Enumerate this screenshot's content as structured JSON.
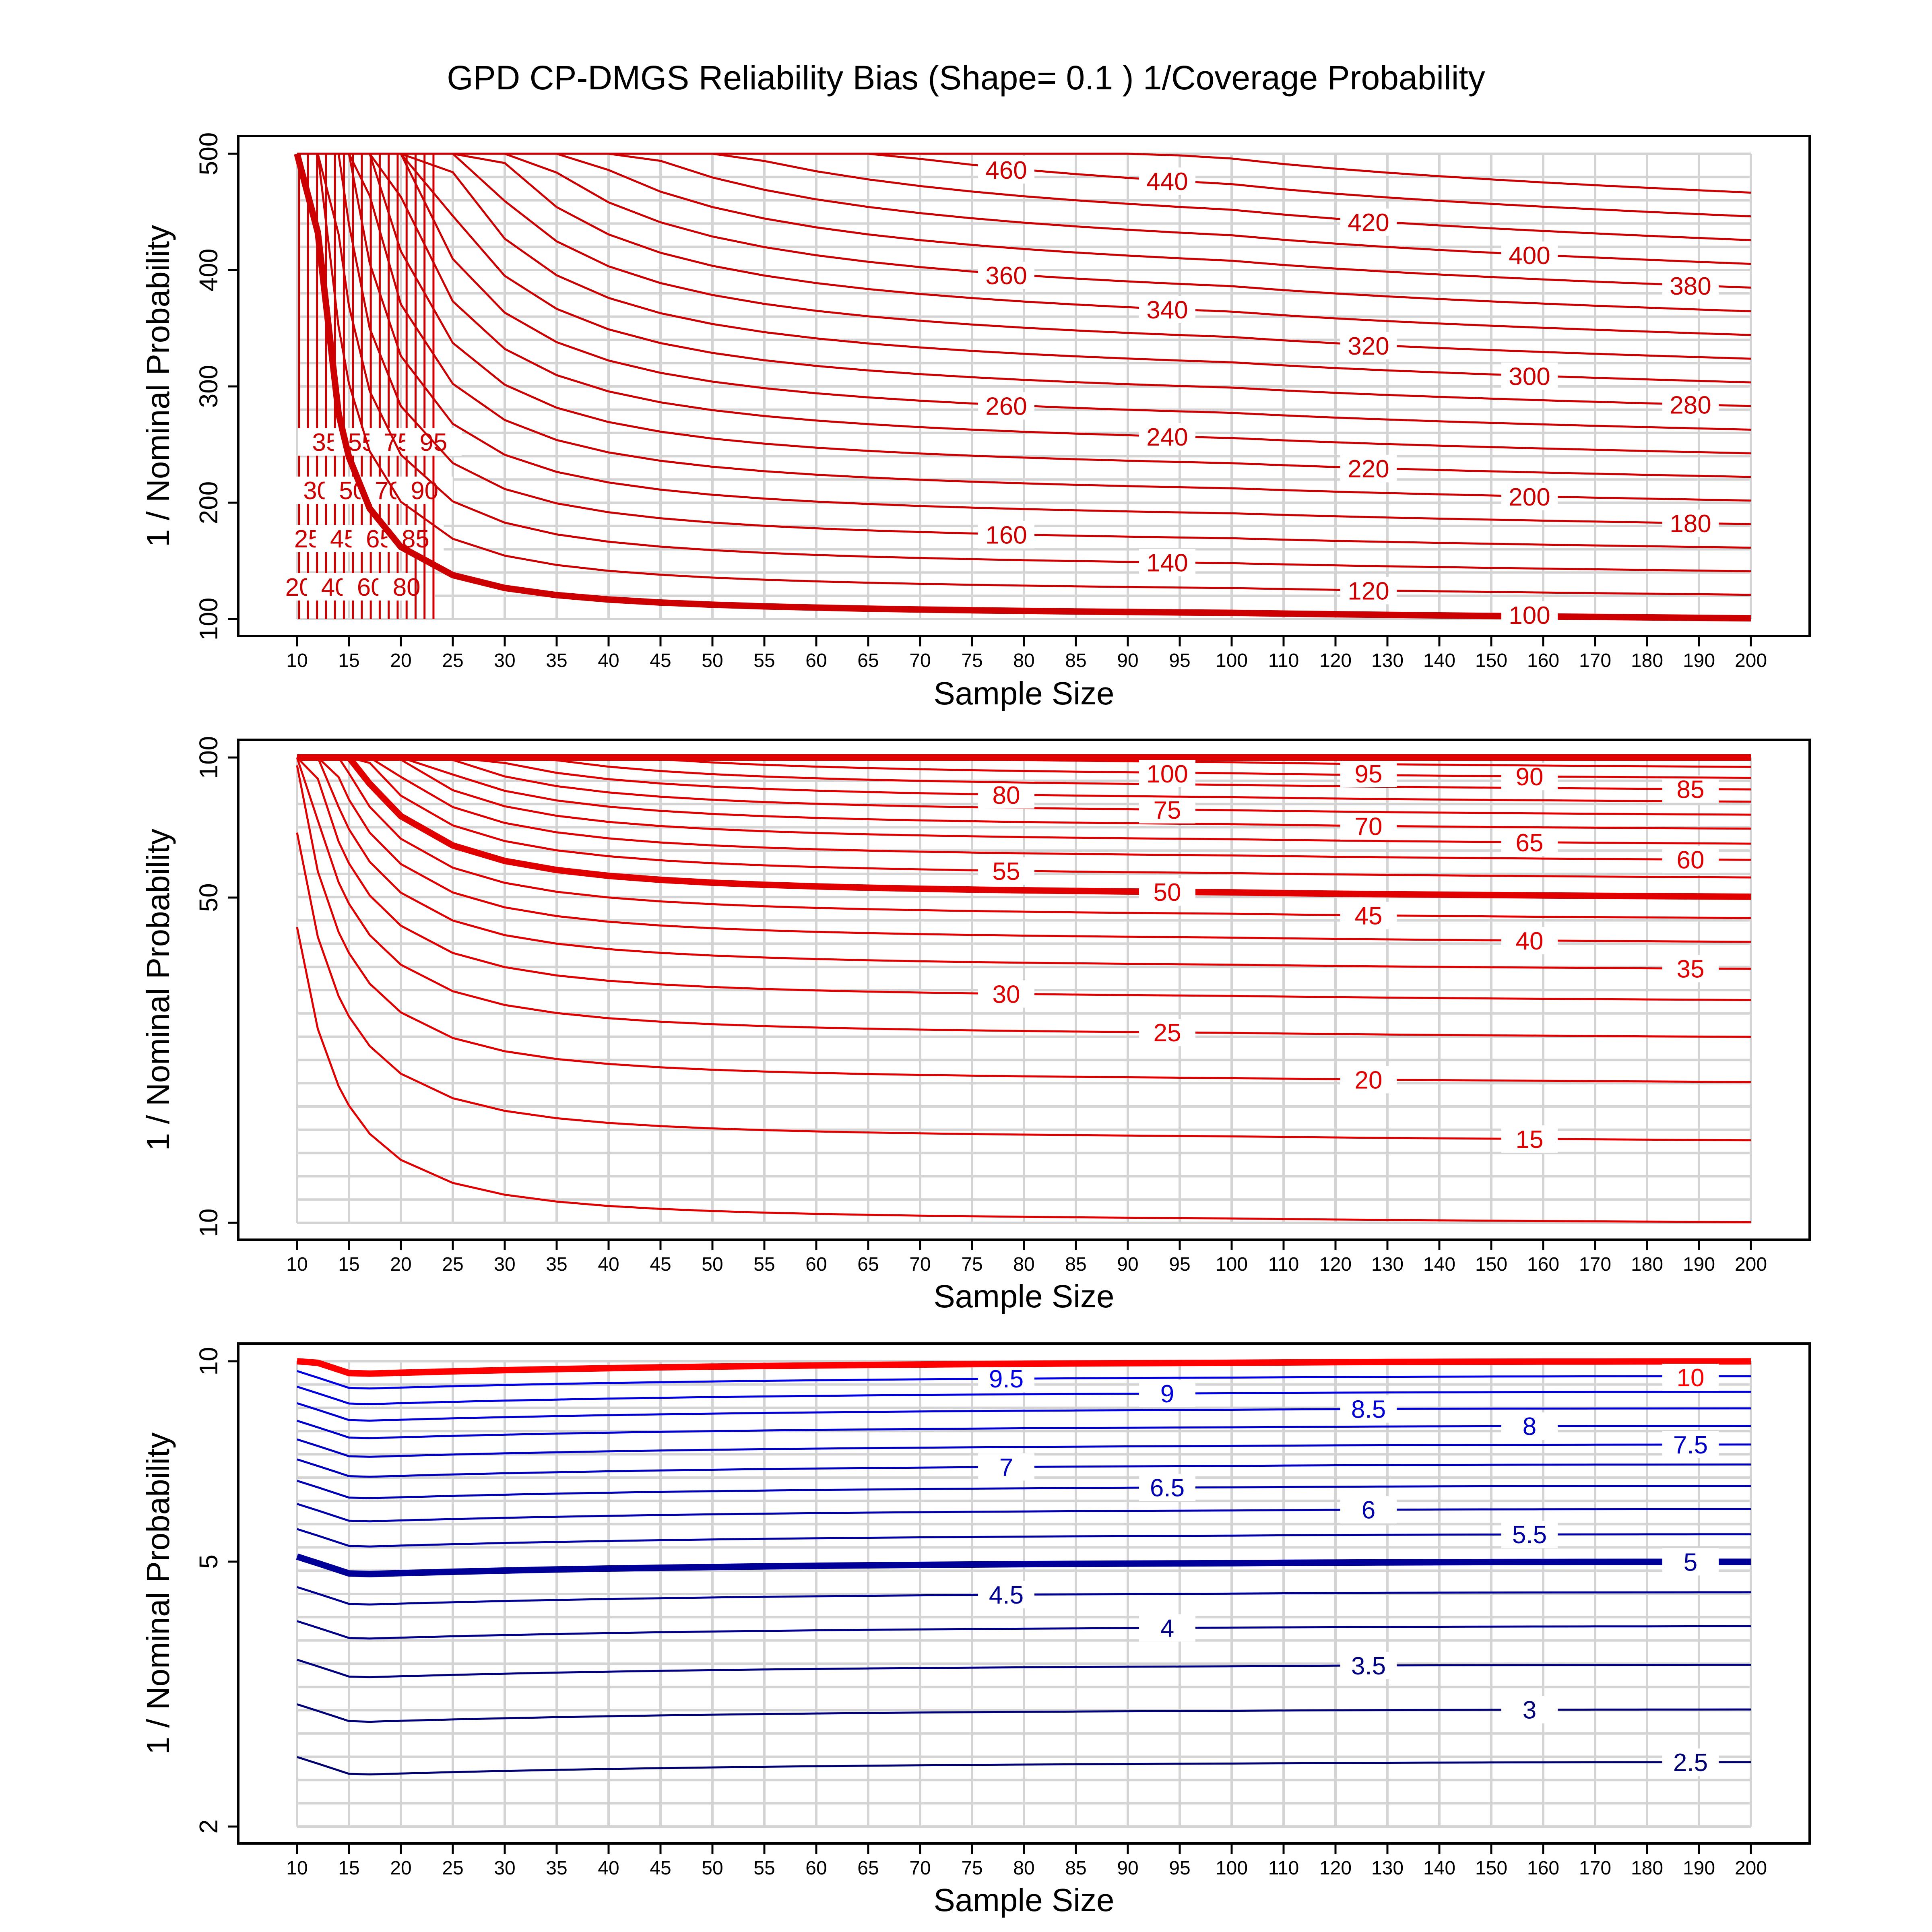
{
  "chart_data": {
    "type": "contour",
    "title": "GPD CP-DMGS Reliability Bias (Shape= 0.1 ) 1/Coverage Probability",
    "xlabel": "Sample Size",
    "ylabel": "1 / Nominal Probability",
    "x_ticks": [
      10,
      15,
      20,
      25,
      30,
      35,
      40,
      45,
      50,
      55,
      60,
      65,
      70,
      75,
      80,
      85,
      90,
      95,
      100,
      110,
      120,
      130,
      140,
      150,
      160,
      170,
      180,
      190,
      200
    ],
    "x_range": [
      10,
      200
    ],
    "grid": true,
    "panels": [
      {
        "name": "top",
        "y_range": [
          100,
          500
        ],
        "y_ticks": [
          100,
          200,
          300,
          400,
          500
        ],
        "color": "#cc0000",
        "highlight_level": 100,
        "contour_levels": [
          20,
          25,
          30,
          35,
          40,
          45,
          50,
          55,
          60,
          65,
          70,
          75,
          80,
          85,
          90,
          95,
          100,
          120,
          140,
          160,
          180,
          200,
          220,
          240,
          260,
          280,
          300,
          320,
          340,
          360,
          380,
          400,
          420,
          440,
          460
        ],
        "printed_labels": [
          "20",
          "25",
          "30",
          "35",
          "40",
          "45",
          "50",
          "55",
          "60",
          "65",
          "70",
          "75",
          "80",
          "85",
          "90",
          "95",
          "100",
          "120",
          "140",
          "160",
          "180",
          "200",
          "220",
          "240",
          "260",
          "280",
          "300",
          "320",
          "340",
          "360",
          "380",
          "400",
          "420",
          "440",
          "460"
        ]
      },
      {
        "name": "middle",
        "y_range": [
          10,
          100
        ],
        "y_ticks": [
          10,
          50,
          100
        ],
        "color": "#e00000",
        "highlight_levels": [
          50,
          100
        ],
        "contour_levels": [
          10,
          15,
          20,
          25,
          30,
          35,
          40,
          45,
          50,
          55,
          60,
          65,
          70,
          75,
          80,
          85,
          90,
          95,
          100
        ],
        "printed_labels": [
          "15",
          "20",
          "25",
          "30",
          "35",
          "40",
          "45",
          "50",
          "55",
          "60",
          "65",
          "70",
          "75",
          "80",
          "85",
          "90",
          "95",
          "100"
        ]
      },
      {
        "name": "bottom",
        "y_range": [
          2,
          10
        ],
        "y_ticks": [
          2,
          5,
          10
        ],
        "color": "#0000cc",
        "highlight_levels": [
          5,
          10
        ],
        "contour_levels": [
          2.5,
          3,
          3.5,
          4,
          4.5,
          5,
          5.5,
          6,
          6.5,
          7,
          7.5,
          8,
          8.5,
          9,
          9.5,
          10
        ],
        "printed_labels": [
          "2.5",
          "3",
          "3.5",
          "4",
          "4.5",
          "5",
          "5.5",
          "6",
          "6.5",
          "7",
          "7.5",
          "8",
          "8.5",
          "9",
          "9.5",
          "10"
        ]
      }
    ]
  }
}
